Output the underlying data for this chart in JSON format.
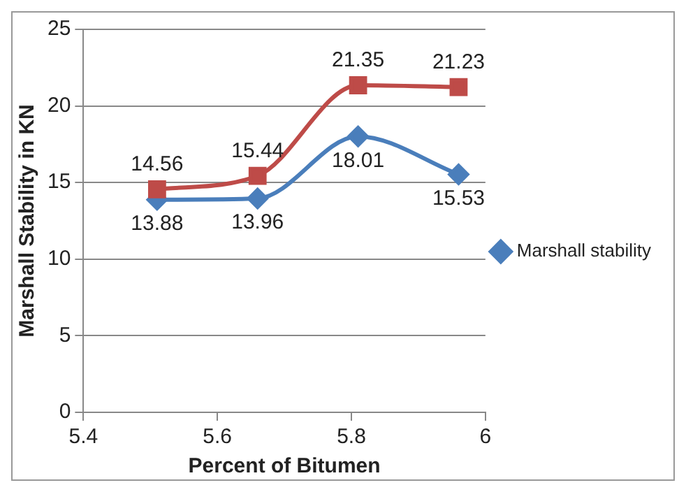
{
  "chart_data": {
    "type": "line",
    "xlabel": "Percent of Bitumen",
    "ylabel": "Marshall Stability in KN",
    "x": [
      5.51,
      5.66,
      5.81,
      5.96
    ],
    "series": [
      {
        "name": "Marshall stability",
        "color": "#4a7ebb",
        "marker": "diamond",
        "values": [
          13.88,
          13.96,
          18.01,
          15.53
        ]
      },
      {
        "color": "#be4b48",
        "marker": "square",
        "values": [
          14.56,
          15.44,
          21.35,
          21.23
        ]
      }
    ],
    "xlim": [
      5.4,
      6
    ],
    "xticks": [
      5.4,
      5.6,
      5.8,
      6
    ],
    "ylim": [
      0,
      25
    ],
    "yticks": [
      0,
      5,
      10,
      15,
      20,
      25
    ],
    "grid": "y",
    "legend": "right",
    "data_labels": true
  }
}
